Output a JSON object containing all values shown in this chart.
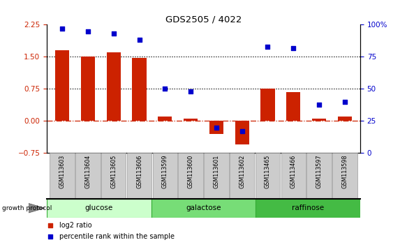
{
  "title": "GDS2505 / 4022",
  "samples": [
    "GSM113603",
    "GSM113604",
    "GSM113605",
    "GSM113606",
    "GSM113599",
    "GSM113600",
    "GSM113601",
    "GSM113602",
    "GSM113465",
    "GSM113466",
    "GSM113597",
    "GSM113598"
  ],
  "log2_ratio": [
    1.65,
    1.5,
    1.6,
    1.47,
    0.1,
    0.05,
    -0.3,
    -0.55,
    0.75,
    0.68,
    0.05,
    0.1
  ],
  "percentile_rank": [
    97,
    95,
    93,
    88,
    50,
    48,
    20,
    17,
    83,
    82,
    38,
    40
  ],
  "groups": [
    {
      "name": "glucose",
      "start": 0,
      "end": 4,
      "color": "#ccffcc"
    },
    {
      "name": "galactose",
      "start": 4,
      "end": 8,
      "color": "#77dd77"
    },
    {
      "name": "raffinose",
      "start": 8,
      "end": 12,
      "color": "#44bb44"
    }
  ],
  "bar_color": "#cc2200",
  "scatter_color": "#0000cc",
  "ylim_left": [
    -0.75,
    2.25
  ],
  "ylim_right": [
    0,
    100
  ],
  "yticks_left": [
    -0.75,
    0,
    0.75,
    1.5,
    2.25
  ],
  "yticks_right": [
    0,
    25,
    50,
    75,
    100
  ],
  "hlines": [
    0.75,
    1.5
  ],
  "hline_zero_color": "#cc2200",
  "dotted_line_color": "#000000",
  "left_tick_color": "#cc2200",
  "right_tick_color": "#0000cc",
  "legend_items": [
    "log2 ratio",
    "percentile rank within the sample"
  ],
  "growth_protocol_label": "growth protocol",
  "group_border_color": "#33aa33",
  "sample_box_color": "#cccccc",
  "sample_box_edge": "#999999"
}
